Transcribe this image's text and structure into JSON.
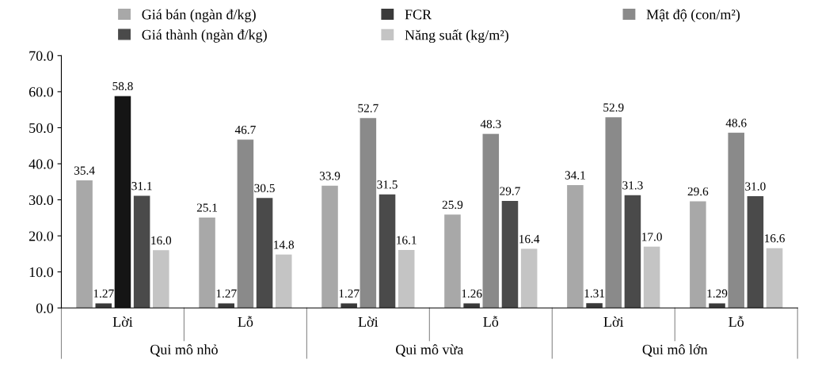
{
  "chart_data": {
    "type": "bar",
    "categories": [
      "Lời",
      "Lỗ",
      "Lời",
      "Lỗ",
      "Lời",
      "Lỗ"
    ],
    "series": [
      {
        "name": "Giá bán (ngàn đ/kg)",
        "color": "#a8a8a8",
        "values": [
          35.4,
          25.1,
          33.9,
          25.9,
          34.1,
          29.6
        ],
        "value_labels": [
          "35.4",
          "25.1",
          "33.9",
          "25.9",
          "34.1",
          "29.6"
        ]
      },
      {
        "name": "FCR",
        "color": "#3a3a3a",
        "values": [
          1.27,
          1.27,
          1.27,
          1.26,
          1.31,
          1.29
        ],
        "value_labels": [
          "1.27",
          "1.27",
          "1.27",
          "1.26",
          "1.31",
          "1.29"
        ]
      },
      {
        "name": "Mật độ (con/m²)",
        "color": "#8a8a8a",
        "colors": [
          "#151515",
          "#8a8a8a",
          "#8a8a8a",
          "#8a8a8a",
          "#8a8a8a",
          "#8a8a8a"
        ],
        "values": [
          58.8,
          46.7,
          52.7,
          48.3,
          52.9,
          48.6
        ],
        "value_labels": [
          "58.8",
          "46.7",
          "52.7",
          "48.3",
          "52.9",
          "48.6"
        ]
      },
      {
        "name": "Giá thành (ngàn đ/kg)",
        "color": "#4a4a4a",
        "values": [
          31.1,
          30.5,
          31.5,
          29.7,
          31.3,
          31.0
        ],
        "value_labels": [
          "31.1",
          "30.5",
          "31.5",
          "29.7",
          "31.3",
          "31.0"
        ]
      },
      {
        "name": "Năng suất (kg/m²)",
        "color": "#c4c4c4",
        "values": [
          16.0,
          14.8,
          16.1,
          16.4,
          17.0,
          16.6
        ],
        "value_labels": [
          "16.0",
          "14.8",
          "16.1",
          "16.4",
          "17.0",
          "16.6"
        ]
      }
    ],
    "annotations": [
      "Qui mô nhỏ",
      "Qui mô vừa",
      "Qui mô lớn"
    ],
    "ylim": [
      0,
      70
    ],
    "yticks": [
      {
        "value": 0,
        "label": "0.0"
      },
      {
        "value": 10,
        "label": "10.0"
      },
      {
        "value": 20,
        "label": "20.0"
      },
      {
        "value": 30,
        "label": "30.0"
      },
      {
        "value": 40,
        "label": "40.0"
      },
      {
        "value": 50,
        "label": "50.0"
      },
      {
        "value": 60,
        "label": "60.0"
      },
      {
        "value": 70,
        "label": "70.0"
      }
    ],
    "grid": false,
    "legend": "top"
  }
}
